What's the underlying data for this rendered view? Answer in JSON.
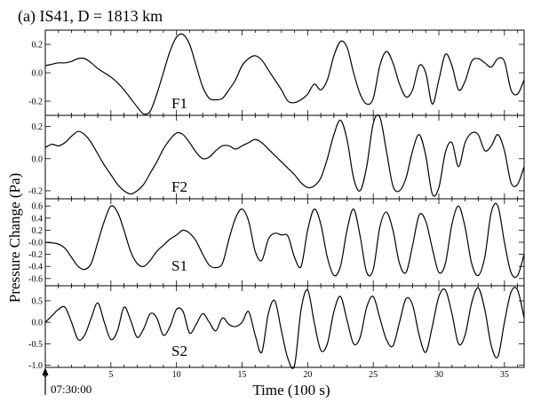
{
  "title": "(a) IS41, D = 1813 km",
  "start_time": "07:30:00",
  "chart_data": [
    {
      "type": "line",
      "panel": "F1",
      "xlabel": "Time (100 s)",
      "ylabel": "Pressure Change (Pa)",
      "xlim": [
        0,
        36.5
      ],
      "ylim": [
        -0.3,
        0.3
      ],
      "xticks": [
        0,
        5,
        10,
        15,
        20,
        25,
        30,
        35
      ],
      "yticks": [
        0.2,
        0.0,
        -0.2
      ],
      "ytick_labels": [
        "0.2",
        "0.0",
        "-0.2"
      ],
      "x": [
        0,
        0.5,
        1,
        1.5,
        2,
        2.5,
        3,
        3.5,
        4,
        4.5,
        5,
        5.5,
        6,
        6.5,
        7,
        7.5,
        8,
        8.5,
        9,
        9.5,
        10,
        10.5,
        11,
        11.5,
        12,
        12.5,
        13,
        13.5,
        14,
        14.5,
        15,
        15.5,
        16,
        16.5,
        17,
        17.5,
        18,
        18.5,
        19,
        19.5,
        20,
        20.5,
        21,
        21.5,
        22,
        22.5,
        23,
        23.5,
        24,
        24.5,
        25,
        25.5,
        26,
        26.5,
        27,
        27.5,
        28,
        28.5,
        29,
        29.5,
        30,
        30.5,
        31,
        31.5,
        32,
        32.5,
        33,
        33.5,
        34,
        34.5,
        35,
        35.5,
        36,
        36.5
      ],
      "values": [
        0.05,
        0.06,
        0.07,
        0.07,
        0.08,
        0.1,
        0.1,
        0.07,
        0.03,
        0.0,
        -0.03,
        -0.07,
        -0.12,
        -0.18,
        -0.24,
        -0.29,
        -0.27,
        -0.15,
        0.0,
        0.15,
        0.25,
        0.27,
        0.2,
        0.05,
        -0.1,
        -0.18,
        -0.19,
        -0.18,
        -0.12,
        -0.05,
        0.05,
        0.1,
        0.12,
        0.09,
        0.02,
        -0.05,
        -0.12,
        -0.2,
        -0.21,
        -0.19,
        -0.15,
        -0.08,
        -0.12,
        -0.05,
        0.12,
        0.22,
        0.18,
        0.0,
        -0.15,
        -0.22,
        -0.18,
        0.05,
        0.15,
        0.07,
        -0.08,
        -0.17,
        -0.12,
        0.05,
        0.0,
        -0.22,
        -0.05,
        0.13,
        0.05,
        -0.12,
        -0.06,
        0.08,
        0.1,
        0.07,
        0.04,
        0.1,
        0.08,
        -0.12,
        -0.15,
        -0.05
      ]
    },
    {
      "type": "line",
      "panel": "F2",
      "xlim": [
        0,
        36.5
      ],
      "ylim": [
        -0.25,
        0.27
      ],
      "yticks": [
        0.2,
        0.0,
        -0.2
      ],
      "ytick_labels": [
        "0.2",
        "0.0",
        "-0.2"
      ],
      "x": [
        0,
        0.5,
        1,
        1.5,
        2,
        2.5,
        3,
        3.5,
        4,
        4.5,
        5,
        5.5,
        6,
        6.5,
        7,
        7.5,
        8,
        8.5,
        9,
        9.5,
        10,
        10.5,
        11,
        11.5,
        12,
        12.5,
        13,
        13.5,
        14,
        14.5,
        15,
        15.5,
        16,
        16.5,
        17,
        17.5,
        18,
        18.5,
        19,
        19.5,
        20,
        20.5,
        21,
        21.5,
        22,
        22.5,
        23,
        23.5,
        24,
        24.5,
        25,
        25.5,
        26,
        26.5,
        27,
        27.5,
        28,
        28.5,
        29,
        29.5,
        30,
        30.5,
        31,
        31.5,
        32,
        32.5,
        33,
        33.5,
        34,
        34.5,
        35,
        35.5,
        36,
        36.5
      ],
      "values": [
        0.07,
        0.09,
        0.08,
        0.1,
        0.14,
        0.17,
        0.15,
        0.1,
        0.03,
        -0.04,
        -0.1,
        -0.16,
        -0.2,
        -0.22,
        -0.2,
        -0.16,
        -0.09,
        -0.02,
        0.06,
        0.12,
        0.16,
        0.15,
        0.1,
        0.04,
        0.0,
        0.01,
        0.05,
        0.08,
        0.08,
        0.06,
        0.08,
        0.1,
        0.12,
        0.1,
        0.06,
        0.02,
        -0.02,
        -0.06,
        -0.1,
        -0.15,
        -0.18,
        -0.17,
        -0.12,
        0.0,
        0.15,
        0.24,
        0.12,
        -0.12,
        -0.2,
        -0.05,
        0.22,
        0.26,
        0.05,
        -0.17,
        -0.2,
        -0.12,
        0.05,
        0.15,
        0.02,
        -0.22,
        -0.18,
        0.04,
        0.1,
        -0.05,
        0.1,
        0.16,
        0.15,
        0.05,
        0.08,
        0.15,
        0.05,
        -0.15,
        -0.16,
        -0.05
      ]
    },
    {
      "type": "line",
      "panel": "S1",
      "xlim": [
        0,
        36.5
      ],
      "ylim": [
        -0.72,
        0.72
      ],
      "yticks": [
        0.6,
        0.4,
        0.2,
        0.0,
        -0.2,
        -0.4,
        -0.6
      ],
      "ytick_labels": [
        "0.6",
        "0.4",
        "0.2",
        "-0.0",
        "-0.2",
        "-0.4",
        "-0.6"
      ],
      "x": [
        0,
        0.5,
        1,
        1.5,
        2,
        2.5,
        3,
        3.5,
        4,
        4.5,
        5,
        5.5,
        6,
        6.5,
        7,
        7.5,
        8,
        8.5,
        9,
        9.5,
        10,
        10.5,
        11,
        11.5,
        12,
        12.5,
        13,
        13.5,
        14,
        14.5,
        15,
        15.5,
        16,
        16.5,
        17,
        17.5,
        18,
        18.5,
        19,
        19.5,
        20,
        20.5,
        21,
        21.5,
        22,
        22.5,
        23,
        23.5,
        24,
        24.5,
        25,
        25.5,
        26,
        26.5,
        27,
        27.5,
        28,
        28.5,
        29,
        29.5,
        30,
        30.5,
        31,
        31.5,
        32,
        32.5,
        33,
        33.5,
        34,
        34.5,
        35,
        35.5,
        36,
        36.5
      ],
      "values": [
        0.0,
        -0.01,
        -0.03,
        -0.1,
        -0.25,
        -0.4,
        -0.45,
        -0.35,
        0.0,
        0.35,
        0.6,
        0.5,
        0.2,
        -0.15,
        -0.35,
        -0.4,
        -0.3,
        -0.15,
        -0.05,
        0.05,
        0.12,
        0.2,
        0.15,
        0.02,
        -0.2,
        -0.38,
        -0.42,
        -0.35,
        0.05,
        0.4,
        0.55,
        0.35,
        -0.15,
        -0.3,
        0.05,
        0.15,
        0.12,
        0.1,
        -0.25,
        -0.4,
        0.2,
        0.55,
        0.3,
        -0.25,
        -0.55,
        -0.4,
        0.2,
        0.55,
        0.1,
        -0.5,
        -0.45,
        0.25,
        0.5,
        0.2,
        -0.35,
        -0.5,
        -0.05,
        0.45,
        0.35,
        -0.1,
        -0.5,
        -0.35,
        0.3,
        0.6,
        0.25,
        -0.35,
        -0.55,
        -0.25,
        0.5,
        0.6,
        0.0,
        -0.5,
        -0.55,
        -0.2
      ]
    },
    {
      "type": "line",
      "panel": "S2",
      "xlim": [
        0,
        36.5
      ],
      "ylim": [
        -1.05,
        0.85
      ],
      "yticks": [
        0.5,
        0.0,
        -0.5,
        -1.0
      ],
      "ytick_labels": [
        "0.5",
        "0.0",
        "-0.5",
        "-1.0"
      ],
      "x": [
        0,
        0.5,
        1,
        1.5,
        2,
        2.5,
        3,
        3.5,
        4,
        4.5,
        5,
        5.5,
        6,
        6.5,
        7,
        7.5,
        8,
        8.5,
        9,
        9.5,
        10,
        10.5,
        11,
        11.5,
        12,
        12.5,
        13,
        13.5,
        14,
        14.5,
        15,
        15.5,
        16,
        16.5,
        17,
        17.5,
        18,
        18.5,
        19,
        19.5,
        20,
        20.5,
        21,
        21.5,
        22,
        22.5,
        23,
        23.5,
        24,
        24.5,
        25,
        25.5,
        26,
        26.5,
        27,
        27.5,
        28,
        28.5,
        29,
        29.5,
        30,
        30.5,
        31,
        31.5,
        32,
        32.5,
        33,
        33.5,
        34,
        34.5,
        35,
        35.5,
        36,
        36.5
      ],
      "values": [
        0.0,
        0.15,
        0.3,
        0.35,
        0.0,
        -0.4,
        -0.3,
        0.1,
        0.45,
        0.0,
        -0.4,
        -0.2,
        0.35,
        0.05,
        -0.35,
        -0.15,
        0.2,
        0.1,
        -0.3,
        -0.1,
        0.3,
        0.25,
        -0.25,
        -0.05,
        0.2,
        0.0,
        -0.2,
        0.1,
        -0.05,
        -0.1,
        0.0,
        0.25,
        -0.3,
        -0.7,
        0.2,
        0.5,
        -0.2,
        -0.85,
        -1.0,
        0.3,
        0.75,
        0.0,
        -0.65,
        -0.5,
        0.25,
        0.6,
        0.05,
        -0.5,
        -0.35,
        0.35,
        0.6,
        0.1,
        -0.4,
        -0.55,
        0.0,
        0.55,
        0.4,
        -0.3,
        -0.7,
        -0.1,
        0.6,
        0.75,
        0.2,
        -0.5,
        -0.3,
        0.45,
        0.8,
        0.3,
        -0.55,
        -0.8,
        0.0,
        0.7,
        0.75,
        0.1
      ]
    }
  ]
}
